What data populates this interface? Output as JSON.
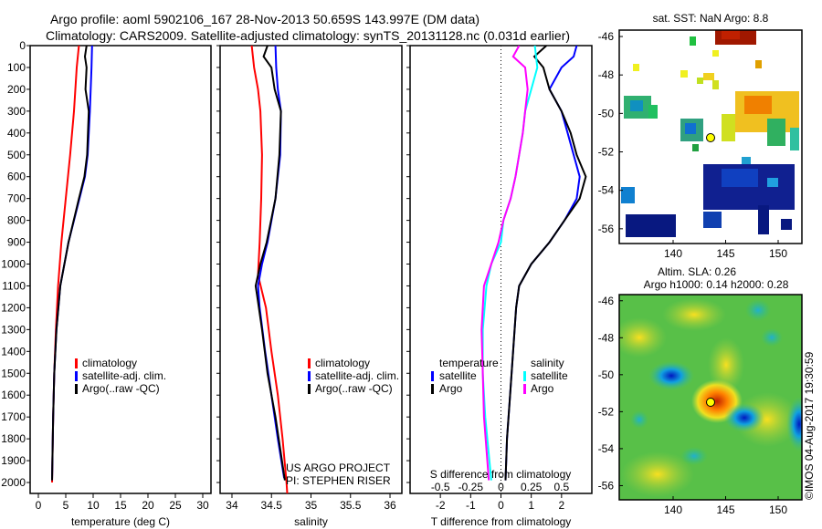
{
  "title": {
    "line1": "Argo profile: aoml 5902106_167 28-Nov-2013 50.659S 143.997E (DM data)",
    "line2": "Climatology: CARS2009. Satellite-adjusted climatology: synTS_20131128.nc (0.031d earlier)"
  },
  "colors": {
    "climatology": "#ff0000",
    "satellite": "#0000ff",
    "argo": "#000000",
    "s_satellite": "#00ffff",
    "s_argo": "#ff00ff"
  },
  "chart_data": [
    {
      "type": "line",
      "id": "temperature",
      "xlabel": "temperature (deg C)",
      "ylabel": "",
      "xlim": [
        -1.5,
        31.5
      ],
      "ylim": [
        2050,
        0
      ],
      "xticks": [
        "0",
        "5",
        "10",
        "15",
        "20",
        "25",
        "30"
      ],
      "yticks": [
        "0",
        "100",
        "200",
        "300",
        "400",
        "500",
        "600",
        "700",
        "800",
        "900",
        "1000",
        "1100",
        "1200",
        "1300",
        "1400",
        "1500",
        "1600",
        "1700",
        "1800",
        "1900",
        "2000"
      ],
      "legend": [
        "climatology",
        "satellite-adj. clim.",
        "Argo(..raw -QC)"
      ],
      "legend_placement": "lower-center",
      "series": [
        {
          "name": "climatology",
          "color": "#ff0000",
          "depth": [
            0,
            100,
            300,
            500,
            700,
            900,
            1100,
            1300,
            1500,
            1700,
            2000
          ],
          "values": [
            7.4,
            7.0,
            6.5,
            5.8,
            5.0,
            4.2,
            3.6,
            3.2,
            2.9,
            2.7,
            2.5
          ]
        },
        {
          "name": "satellite-adj. clim.",
          "color": "#0000ff",
          "depth": [
            0,
            100,
            300,
            500,
            600,
            700,
            900,
            1100,
            1300,
            1500,
            1700,
            1990
          ],
          "values": [
            9.8,
            9.7,
            9.4,
            9.0,
            8.5,
            7.5,
            5.5,
            4.0,
            3.3,
            2.9,
            2.7,
            2.5
          ]
        },
        {
          "name": "Argo(..raw -QC)",
          "color": "#000000",
          "depth": [
            0,
            50,
            100,
            200,
            300,
            500,
            600,
            700,
            900,
            1100,
            1300,
            1500,
            1700,
            1990
          ],
          "values": [
            8.8,
            8.5,
            8.8,
            8.6,
            9.2,
            8.9,
            8.4,
            7.4,
            5.5,
            4.0,
            3.3,
            2.9,
            2.7,
            2.5
          ]
        }
      ]
    },
    {
      "type": "line",
      "id": "salinity",
      "xlabel": "salinity",
      "xlim": [
        33.85,
        36.15
      ],
      "ylim": [
        2050,
        0
      ],
      "xticks": [
        "34",
        "34.5",
        "35",
        "35.5",
        "36"
      ],
      "legend": [
        "climatology",
        "satellite-adj. clim.",
        "Argo(..raw -QC)"
      ],
      "legend_placement": "lower-center",
      "annotation": [
        "US ARGO PROJECT",
        "PI: STEPHEN RISER"
      ],
      "series": [
        {
          "name": "climatology",
          "color": "#ff0000",
          "depth": [
            0,
            100,
            200,
            300,
            500,
            700,
            900,
            1050,
            1200,
            1400,
            1600,
            1800,
            2000,
            2050
          ],
          "values": [
            34.25,
            34.28,
            34.33,
            34.36,
            34.38,
            34.37,
            34.35,
            34.33,
            34.43,
            34.5,
            34.58,
            34.64,
            34.69,
            34.7
          ]
        },
        {
          "name": "satellite-adj. clim.",
          "color": "#0000ff",
          "depth": [
            0,
            100,
            200,
            300,
            500,
            700,
            900,
            1000,
            1100,
            1200,
            1400,
            1600,
            1800,
            1980
          ],
          "values": [
            34.55,
            34.56,
            34.58,
            34.62,
            34.61,
            34.55,
            34.45,
            34.38,
            34.33,
            34.35,
            34.42,
            34.5,
            34.58,
            34.66
          ]
        },
        {
          "name": "Argo(..raw -QC)",
          "color": "#000000",
          "depth": [
            0,
            50,
            100,
            200,
            300,
            500,
            700,
            900,
            1000,
            1100,
            1150,
            1300,
            1500,
            1700,
            1990
          ],
          "values": [
            34.45,
            34.4,
            34.5,
            34.54,
            34.62,
            34.6,
            34.55,
            34.44,
            34.36,
            34.3,
            34.32,
            34.38,
            34.45,
            34.55,
            34.67
          ]
        }
      ]
    },
    {
      "type": "line",
      "id": "difference",
      "xlabel": "T difference from climatology",
      "x2label": "S difference from climatology",
      "xlim": [
        -3,
        3
      ],
      "ylim": [
        2050,
        0
      ],
      "xticks": [
        "-2",
        "-1",
        "0",
        "1",
        "2"
      ],
      "x2ticks": [
        "-0.5",
        "-0.25",
        "0",
        "0.25",
        "0.5"
      ],
      "legend_titles": [
        "temperature",
        "salinity"
      ],
      "legend": [
        "satellite",
        "Argo",
        "satellite",
        "Argo"
      ],
      "series": [
        {
          "name": "T satellite",
          "color": "#0000ff",
          "axis": "T",
          "depth": [
            0,
            50,
            100,
            200,
            300,
            400,
            500,
            600,
            700,
            800,
            900,
            1000,
            1100,
            1200,
            1400,
            1600,
            1800,
            1990
          ],
          "values": [
            2.5,
            2.4,
            2.0,
            1.6,
            2.0,
            2.2,
            2.4,
            2.6,
            2.5,
            2.1,
            1.6,
            1.0,
            0.6,
            0.5,
            0.4,
            0.3,
            0.2,
            0.15
          ]
        },
        {
          "name": "T Argo",
          "color": "#000000",
          "axis": "T",
          "depth": [
            0,
            50,
            100,
            200,
            300,
            400,
            500,
            600,
            700,
            800,
            900,
            1000,
            1100,
            1200,
            1400,
            1600,
            1800,
            1990
          ],
          "values": [
            1.5,
            1.1,
            1.4,
            1.6,
            2.0,
            2.3,
            2.5,
            2.8,
            2.6,
            2.1,
            1.6,
            1.0,
            0.6,
            0.5,
            0.4,
            0.3,
            0.2,
            0.15
          ]
        },
        {
          "name": "S satellite",
          "color": "#00ffff",
          "axis": "S",
          "depth": [
            0,
            100,
            200,
            300,
            400,
            500,
            600,
            700,
            800,
            900,
            1000,
            1100,
            1300,
            1500,
            1700,
            1990
          ],
          "values": [
            0.28,
            0.3,
            0.25,
            0.2,
            0.18,
            0.15,
            0.12,
            0.08,
            0.02,
            0,
            -0.08,
            -0.12,
            -0.15,
            -0.15,
            -0.13,
            -0.08
          ]
        },
        {
          "name": "S Argo",
          "color": "#ff00ff",
          "axis": "S",
          "depth": [
            0,
            50,
            100,
            200,
            300,
            400,
            500,
            600,
            700,
            800,
            900,
            1000,
            1100,
            1300,
            1500,
            1700,
            1990
          ],
          "values": [
            0.15,
            0.1,
            0.2,
            0.22,
            0.2,
            0.18,
            0.15,
            0.12,
            0.08,
            0.02,
            -0.02,
            -0.08,
            -0.14,
            -0.16,
            -0.15,
            -0.14,
            -0.1
          ]
        }
      ]
    },
    {
      "type": "heatmap",
      "id": "sst_map",
      "title": "sat. SST: NaN Argo: 8.8",
      "xticks": [
        "140",
        "145",
        "150"
      ],
      "yticks": [
        "-46",
        "-48",
        "-50",
        "-52",
        "-54",
        "-56"
      ],
      "marker": {
        "lon": 143.997,
        "lat": -50.659
      }
    },
    {
      "type": "heatmap",
      "id": "sla_map",
      "title": [
        "Altim. SLA: 0.26",
        "Argo h1000: 0.14 h2000: 0.28"
      ],
      "xticks": [
        "140",
        "145",
        "150"
      ],
      "yticks": [
        "-46",
        "-48",
        "-50",
        "-52",
        "-54",
        "-56"
      ],
      "marker": {
        "lon": 143.997,
        "lat": -50.659
      }
    }
  ],
  "credit": "©IMOS 04-Aug-2017 19:30:59"
}
